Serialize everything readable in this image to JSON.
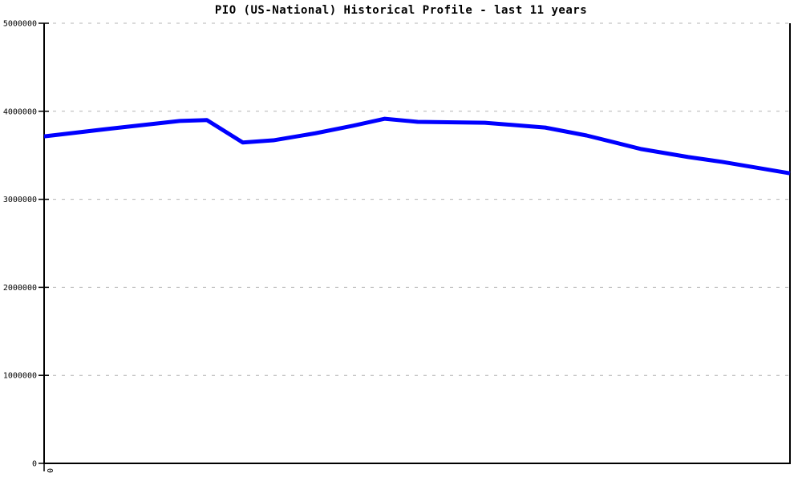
{
  "title": "PIO (US-National) Historical Profile - last 11 years",
  "chart_data": {
    "type": "line",
    "title": "PIO (US-National) Historical Profile - last 11 years",
    "xlabel": "",
    "ylabel": "",
    "x_axis": {
      "min_years": 0,
      "max_years": 11,
      "visible_tick_labels": [
        "0"
      ],
      "tick_label_rotation_deg": 90
    },
    "y_axis": {
      "min": 0,
      "max": 5000000,
      "ticks": [
        0,
        1000000,
        2000000,
        3000000,
        4000000,
        5000000
      ]
    },
    "grid": "horizontal-dashed",
    "legend": "none",
    "series": [
      {
        "name": "PIO (US-National)",
        "points": [
          {
            "x": 0.0,
            "y": 3715000
          },
          {
            "x": 1.0,
            "y": 3805000
          },
          {
            "x": 2.0,
            "y": 3890000
          },
          {
            "x": 2.4,
            "y": 3900000
          },
          {
            "x": 2.93,
            "y": 3645000
          },
          {
            "x": 3.38,
            "y": 3670000
          },
          {
            "x": 4.0,
            "y": 3750000
          },
          {
            "x": 4.55,
            "y": 3835000
          },
          {
            "x": 5.02,
            "y": 3915000
          },
          {
            "x": 5.51,
            "y": 3880000
          },
          {
            "x": 6.5,
            "y": 3870000
          },
          {
            "x": 7.39,
            "y": 3815000
          },
          {
            "x": 8.0,
            "y": 3725000
          },
          {
            "x": 8.81,
            "y": 3570000
          },
          {
            "x": 9.5,
            "y": 3480000
          },
          {
            "x": 10.0,
            "y": 3425000
          },
          {
            "x": 11.0,
            "y": 3295000
          }
        ]
      }
    ],
    "colors": {
      "line": "#0000ff",
      "grid": "#b4b4b4",
      "axis": "#000000",
      "background": "#ffffff"
    }
  }
}
